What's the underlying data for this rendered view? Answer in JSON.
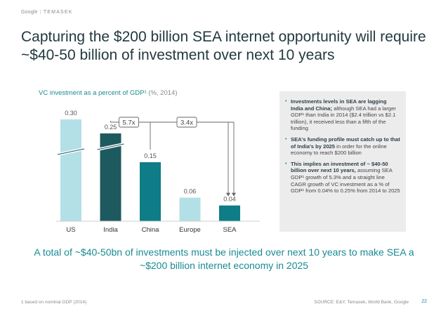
{
  "brand": {
    "name_1": "Google",
    "separator": "|",
    "name_2": "TEMASEK"
  },
  "title": "Capturing the $200 billion SEA internet opportunity will require ~$40-50 billion of investment over next 10 years",
  "chart_heading": {
    "main": "VC investment as a percent of GDP¹",
    "sub": "(%, 2014)"
  },
  "chart_data": {
    "type": "bar",
    "categories": [
      "US",
      "India",
      "China",
      "Europe",
      "SEA"
    ],
    "values": [
      0.3,
      0.25,
      0.15,
      0.06,
      0.04
    ],
    "value_labels": [
      "0.30",
      "0.25",
      "0.15",
      "0.06",
      "0.04"
    ],
    "bar_colors": [
      "#b3e0e6",
      "#1d5a5f",
      "#0e7d87",
      "#b3e0e6",
      "#0e7d87"
    ],
    "axis_breaks": [
      "US",
      "India"
    ],
    "annotations": [
      {
        "label": "5.7x",
        "from": "India",
        "to": "SEA"
      },
      {
        "label": "3.4x",
        "from": "China",
        "to": "SEA"
      }
    ],
    "title": "",
    "xlabel": "",
    "ylabel": ""
  },
  "bullets": [
    {
      "bold": "Investments levels in SEA are lagging India and China;",
      "text": " although SEA had a larger GDP¹ than India in 2014 ($2.4 trillion vs $2.1 trillion), it received less than a fifth of the funding"
    },
    {
      "bold": "SEA's funding profile must catch up to that of India's by 2025",
      "text": " in order for the online economy to reach $200 billion"
    },
    {
      "bold": "This implies an investment of ~ $40-50 billion over next 10 years,",
      "text": " assuming SEA GDP¹ growth of 5.3% and a straight line CAGR growth of VC investment as a % of GDP¹ from 0.04% to 0.25% from 2014 to 2025"
    }
  ],
  "callout": "A total of ~$40-50bn of investments must be injected over next 10 years to make SEA a ~$200 billion internet economy in 2025",
  "footnote": "1 based on nominal GDP (2014)",
  "source": "SOURCE: E&Y, Temasek, World Bank, Google",
  "page_number": "22"
}
